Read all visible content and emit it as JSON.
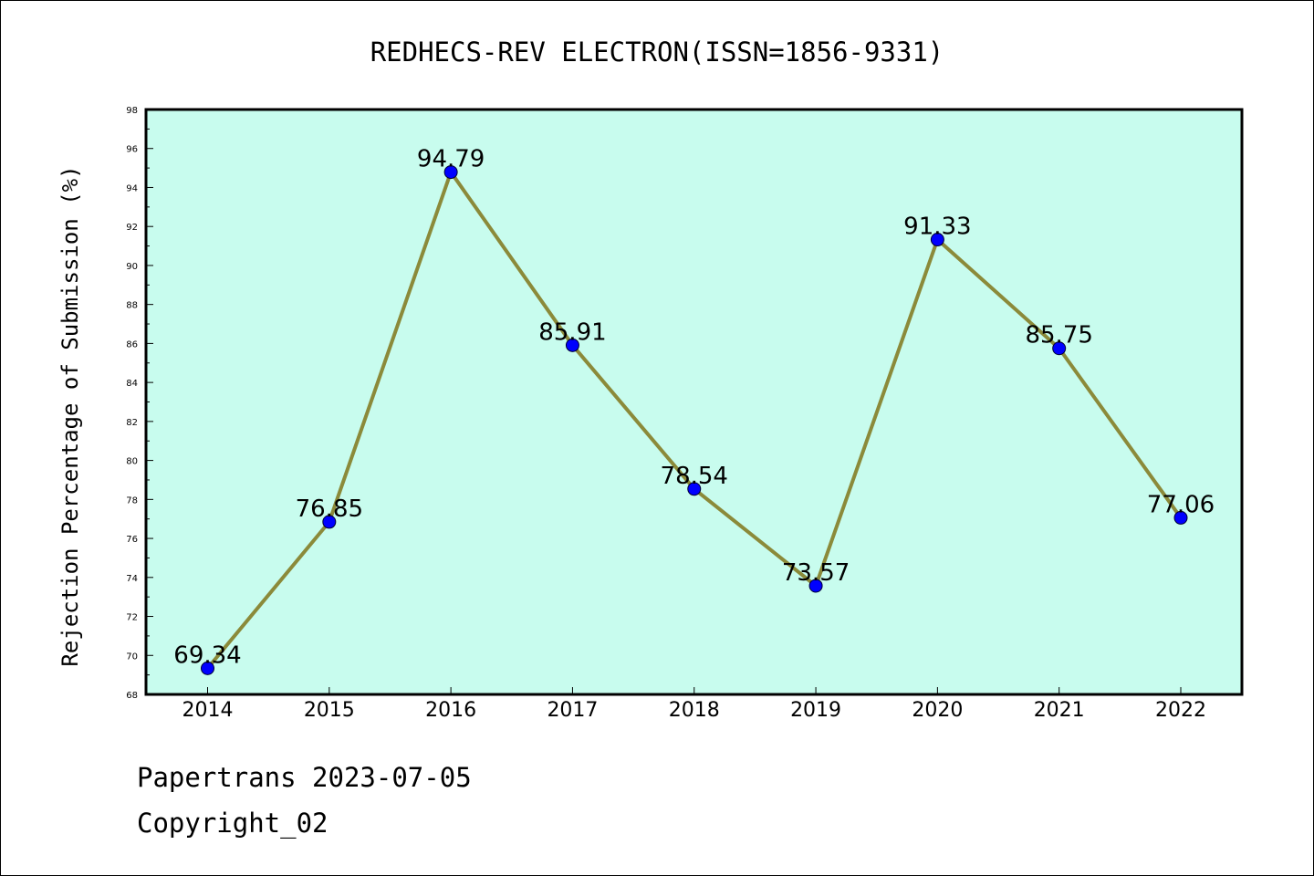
{
  "chart_data": {
    "type": "line",
    "title": "REDHECS-REV ELECTRON(ISSN=1856-9331)",
    "xlabel": "",
    "ylabel": "Rejection Percentage of Submission (%)",
    "categories": [
      "2014",
      "2015",
      "2016",
      "2017",
      "2018",
      "2019",
      "2020",
      "2021",
      "2022"
    ],
    "values": [
      69.34,
      76.85,
      94.79,
      85.91,
      78.54,
      73.57,
      91.33,
      85.75,
      77.06
    ],
    "data_labels": [
      "69.34",
      "76.85",
      "94.79",
      "85.91",
      "78.54",
      "73.57",
      "91.33",
      "85.75",
      "77.06"
    ],
    "ylim": [
      68,
      98
    ],
    "yticks": [
      "68",
      "70",
      "72",
      "74",
      "76",
      "78",
      "80",
      "82",
      "84",
      "86",
      "88",
      "90",
      "92",
      "94",
      "96",
      "98"
    ],
    "grid": false,
    "legend": "none",
    "colors": {
      "plot_background": "#c8fcee",
      "line": "#8b8a3a",
      "marker": "#0000ff"
    }
  },
  "footer": {
    "line1": "Papertrans 2023-07-05",
    "line2": "Copyright_02"
  }
}
